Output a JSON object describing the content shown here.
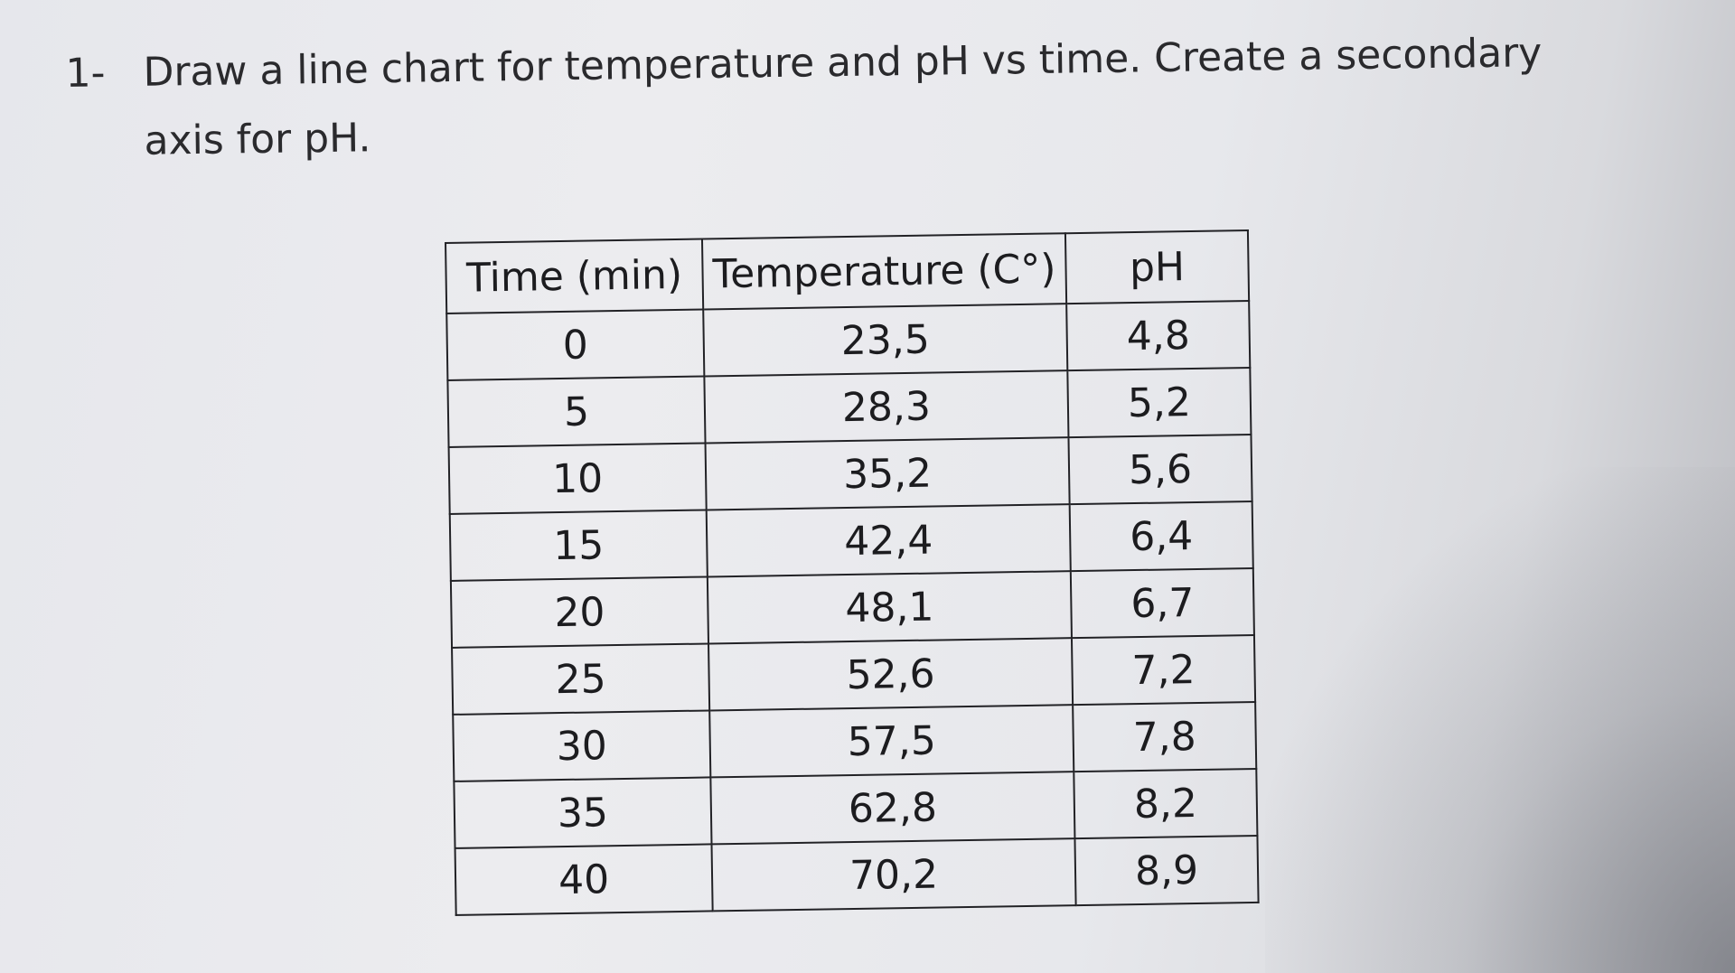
{
  "question": {
    "number": "1-",
    "text": "Draw a line chart for temperature and pH vs time. Create a secondary axis for pH."
  },
  "table": {
    "headers": [
      "Time (min)",
      "Temperature (C°)",
      "pH"
    ],
    "rows": [
      [
        "0",
        "23,5",
        "4,8"
      ],
      [
        "5",
        "28,3",
        "5,2"
      ],
      [
        "10",
        "35,2",
        "5,6"
      ],
      [
        "15",
        "42,4",
        "6,4"
      ],
      [
        "20",
        "48,1",
        "6,7"
      ],
      [
        "25",
        "52,6",
        "7,2"
      ],
      [
        "30",
        "57,5",
        "7,8"
      ],
      [
        "35",
        "62,8",
        "8,2"
      ],
      [
        "40",
        "70,2",
        "8,9"
      ]
    ]
  }
}
